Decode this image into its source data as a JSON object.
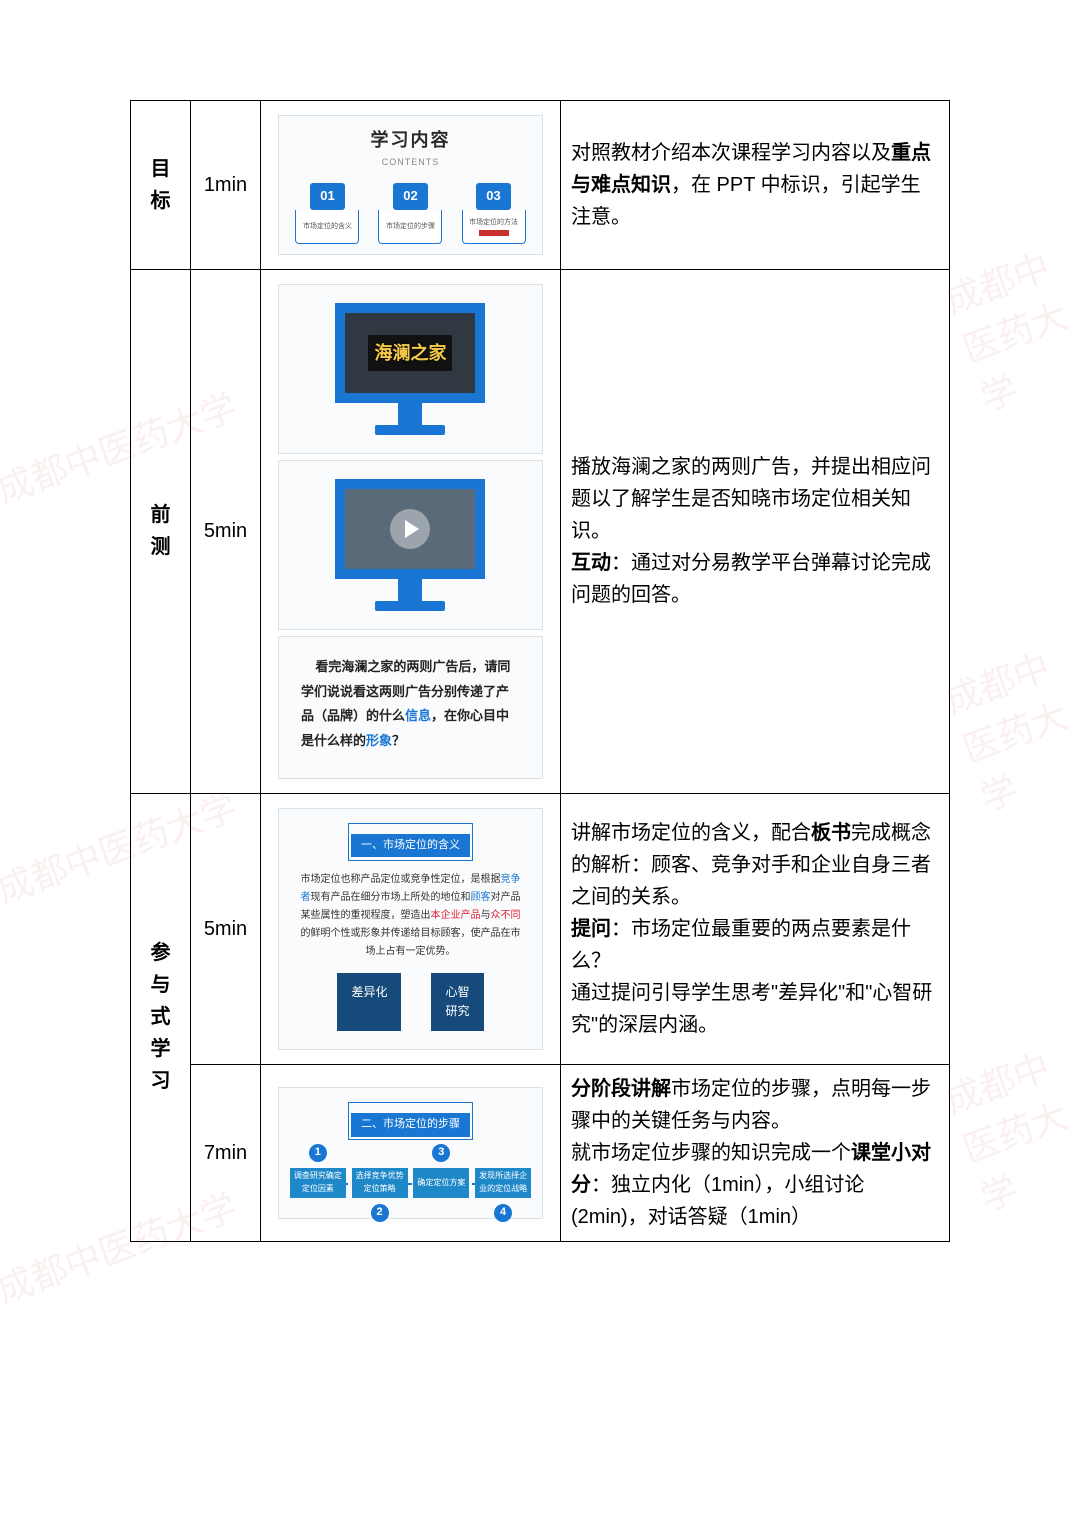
{
  "watermark_text": "成都中医药大学",
  "rows": [
    {
      "phase": "目标",
      "time": "1min",
      "slide": {
        "kind": "contents",
        "title": "学习内容",
        "subtitle": "CONTENTS",
        "items": [
          {
            "num": "01",
            "cap": "市场定位的含义"
          },
          {
            "num": "02",
            "cap": "市场定位的步骤"
          },
          {
            "num": "03",
            "cap": "市场定位的方法"
          }
        ]
      },
      "desc": "对照教材介绍本次课程学习内容以及<b>重点与难点知识</b>，在 PPT 中标识，引起学生注意。"
    },
    {
      "phase": "前测",
      "time": "5min",
      "slide": {
        "kind": "pretest",
        "store_sign": "海澜之家",
        "question_parts": {
          "p1": "看完海澜之家的两则广告后，请同学们说说看这两则广告分别传递了产品（品牌）的什么",
          "hl1": "信息",
          "p2": "，在你心目中是什么样的",
          "hl2": "形象",
          "p3": "？"
        }
      },
      "desc": "播放海澜之家的两则广告，并提出相应问题以了解学生是否知晓市场定位相关知识。<br><b>互动</b>：通过对分易教学平台弹幕讨论完成问题的回答。"
    },
    {
      "phase": "参与式学习",
      "subrows": [
        {
          "time": "5min",
          "slide": {
            "kind": "definition",
            "label": "一、市场定位的含义",
            "text": "市场定位也称产品定位或竞争性定位，是根据<span class='blue'>竞争者</span>现有产品在细分市场上所处的地位和<span class='blue'>顾客</span>对产品某些属性的重视程度，塑造出<span class='red'>本企业产品</span>与<span class='red'>众不同</span>的鲜明个性或形象并传递给目标顾客，使产品在市场上占有一定优势。",
            "tags": [
              "差异化",
              "心智研究"
            ]
          },
          "desc": "讲解市场定位的含义，配合<b>板书</b>完成概念的解析：顾客、竞争对手和企业自身三者之间的关系。<br><b>提问</b>：市场定位最重要的两点要素是什么？<br>通过提问引导学生思考\"差异化\"和\"心智研究\"的深层内涵。"
        },
        {
          "time": "7min",
          "slide": {
            "kind": "flow",
            "label": "二、市场定位的步骤",
            "steps": [
              {
                "n": "1",
                "t": "调查研究确定定位因素"
              },
              {
                "n": "2",
                "t": "选择竞争优势定位策略"
              },
              {
                "n": "3",
                "t": "确定定位方案"
              },
              {
                "n": "4",
                "t": "发现所选择企业的定位战略"
              }
            ]
          },
          "desc": "<b>分阶段讲解</b>市场定位的步骤，点明每一步骤中的关键任务与内容。<br>就市场定位步骤的知识完成一个<b>课堂小对分</b>：独立内化（1min），小组讨论(2min)，对话答疑（1min）"
        }
      ]
    }
  ]
}
